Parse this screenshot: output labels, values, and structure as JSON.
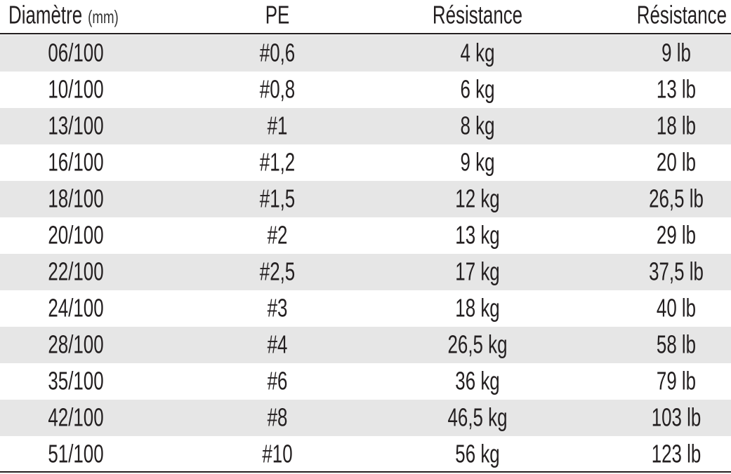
{
  "table": {
    "header": [
      {
        "label": "Diamètre",
        "unit": "(mm)"
      },
      {
        "label": "PE"
      },
      {
        "label": "Résistance"
      },
      {
        "label": "Résistance"
      }
    ],
    "rows": [
      [
        "06/100",
        "#0,6",
        "4 kg",
        "9 lb"
      ],
      [
        "10/100",
        "#0,8",
        "6 kg",
        "13 lb"
      ],
      [
        "13/100",
        "#1",
        "8 kg",
        "18 lb"
      ],
      [
        "16/100",
        "#1,2",
        "9 kg",
        "20 lb"
      ],
      [
        "18/100",
        "#1,5",
        "12 kg",
        "26,5 lb"
      ],
      [
        "20/100",
        "#2",
        "13 kg",
        "29 lb"
      ],
      [
        "22/100",
        "#2,5",
        "17 kg",
        "37,5 lb"
      ],
      [
        "24/100",
        "#3",
        "18 kg",
        "40 lb"
      ],
      [
        "28/100",
        "#4",
        "26,5 kg",
        "58 lb"
      ],
      [
        "35/100",
        "#6",
        "36 kg",
        "79 lb"
      ],
      [
        "42/100",
        "#8",
        "46,5 kg",
        "103 lb"
      ],
      [
        "51/100",
        "#10",
        "56 kg",
        "123 lb"
      ]
    ]
  }
}
